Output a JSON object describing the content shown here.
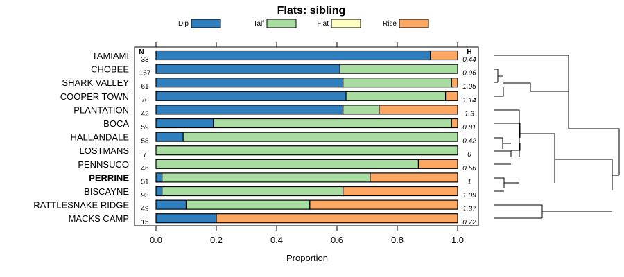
{
  "chart_data": {
    "type": "bar",
    "stacked": true,
    "orientation": "horizontal",
    "title": "Flats: sibling",
    "xlabel": "Proportion",
    "xlim": [
      0,
      1
    ],
    "xticks": [
      "0.0",
      "0.2",
      "0.4",
      "0.6",
      "0.8",
      "1.0"
    ],
    "n_header": "N",
    "h_header": "H",
    "categories": [
      "TAMIAMI",
      "CHOBEE",
      "SHARK VALLEY",
      "COOPER TOWN",
      "PLANTATION",
      "BOCA",
      "HALLANDALE",
      "LOSTMANS",
      "PENNSUCO",
      "PERRINE",
      "BISCAYNE",
      "RATTLESNAKE RIDGE",
      "MACKS CAMP"
    ],
    "highlight": "PERRINE",
    "n": [
      "33",
      "167",
      "61",
      "70",
      "42",
      "59",
      "58",
      "7",
      "46",
      "51",
      "93",
      "49",
      "15"
    ],
    "h": [
      "0.44",
      "0.96",
      "1.05",
      "1.14",
      "1.3",
      "0.81",
      "0.42",
      "0",
      "0.56",
      "1",
      "1.09",
      "1.37",
      "0.72"
    ],
    "series": [
      {
        "name": "Dip",
        "color": "#2f7fbf",
        "values": [
          0.91,
          0.61,
          0.62,
          0.63,
          0.62,
          0.19,
          0.09,
          0.0,
          0.0,
          0.02,
          0.02,
          0.1,
          0.2
        ]
      },
      {
        "name": "Talf",
        "color": "#a8dca0",
        "values": [
          0.0,
          0.39,
          0.36,
          0.33,
          0.12,
          0.79,
          0.91,
          1.0,
          0.87,
          0.69,
          0.6,
          0.41,
          0.0
        ]
      },
      {
        "name": "Flat",
        "color": "#fefec0",
        "values": [
          0,
          0,
          0,
          0,
          0,
          0,
          0,
          0,
          0,
          0,
          0,
          0,
          0
        ]
      },
      {
        "name": "Rise",
        "color": "#fca862",
        "values": [
          0.09,
          0.0,
          0.02,
          0.04,
          0.26,
          0.02,
          0.0,
          0.0,
          0.13,
          0.29,
          0.38,
          0.49,
          0.8
        ]
      }
    ],
    "dendrogram": "hierarchical clustering of sites shown at right"
  }
}
